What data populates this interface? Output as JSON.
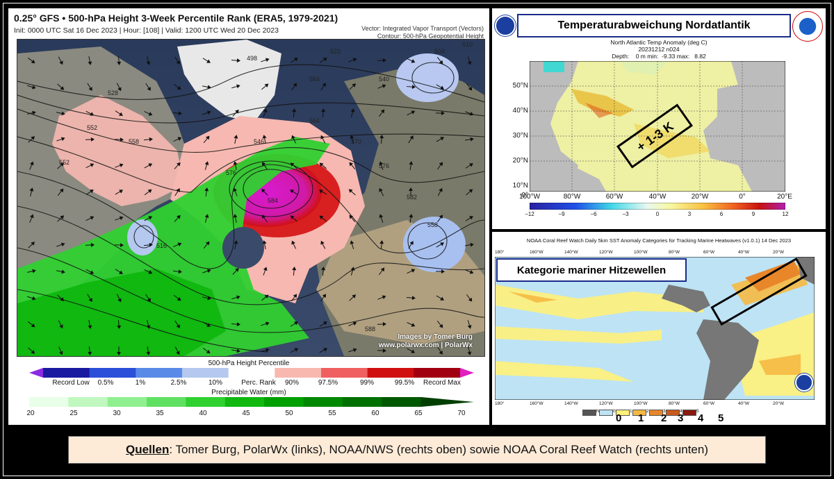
{
  "left_panel": {
    "title": "0.25° GFS • 500-hPa Height 3-Week Percentile Rank (ERA5, 1979-2021)",
    "subtitle": "Init: 0000 UTC Sat 16 Dec 2023 | Hour: [108] | Valid: 1200 UTC Wed 20 Dec 2023",
    "vector_note": "Vector: Integrated Vapor Transport (Vectors)",
    "contour_note": "Contour: 500-hPa Geopotential Height",
    "credit_line1": "Images by Tomer Burg",
    "credit_line2": "www.polarwx.com | PolarWx",
    "contour_labels": [
      "498",
      "504",
      "552",
      "558",
      "546",
      "564",
      "570",
      "576",
      "582",
      "588",
      "552",
      "564",
      "576",
      "584",
      "510",
      "540",
      "528",
      "522",
      "558",
      "516"
    ],
    "height_colorbar": {
      "title": "500-hPa Height Percentile",
      "labels": [
        "Record Low",
        "0.5%",
        "1%",
        "2.5%",
        "10%",
        "Perc. Rank",
        "90%",
        "97.5%",
        "99%",
        "99.5%",
        "Record Max"
      ],
      "colors": [
        "#8a2be2",
        "#1a1aa0",
        "#2b4fd8",
        "#5a8ae8",
        "#b4c8f0",
        "#ffffff",
        "#f8b8b0",
        "#f06060",
        "#d01010",
        "#a00010",
        "#e020c0"
      ]
    },
    "pw_colorbar": {
      "title": "Precipitable Water (mm)",
      "ticks": [
        "20",
        "25",
        "30",
        "35",
        "40",
        "45",
        "50",
        "55",
        "60",
        "65",
        "70"
      ],
      "colors": [
        "#e8ffe8",
        "#c0f8c0",
        "#90f090",
        "#60e060",
        "#30d030",
        "#10b810",
        "#00a000",
        "#008800",
        "#007000",
        "#005800",
        "#003e00"
      ]
    }
  },
  "right_top": {
    "header": "Temperaturabweichung Nordatlantik",
    "plot_title": "North Atlantic Temp Anomaly (deg C)",
    "plot_date": "20231212 n024",
    "plot_depth": "Depth:    0 m min:  -9.33 max:   8.82",
    "y_ticks": [
      "50°N",
      "40°N",
      "30°N",
      "20°N",
      "10°N",
      "0°"
    ],
    "x_ticks": [
      "100°W",
      "80°W",
      "60°W",
      "40°W",
      "20°W",
      "0°",
      "20°E"
    ],
    "colorbar_ticks": [
      "−12",
      "−9",
      "−6",
      "−3",
      "0",
      "3",
      "6",
      "9",
      "12"
    ],
    "annotation": "+ 1-3 K"
  },
  "right_bottom": {
    "plot_title": "NOAA Coral Reef Watch Daily 5km SST Anomaly Categories for Tracking Marine Heatwaves  (v1.0.1)  14 Dec 2023",
    "header": "Kategorie mariner Hitzewellen",
    "top_lon_ticks": [
      "180°",
      "160°W",
      "140°W",
      "120°W",
      "100°W",
      "80°W",
      "60°W",
      "40°W",
      "20°W"
    ],
    "bottom_lon_ticks": [
      "180°",
      "160°W",
      "140°W",
      "120°W",
      "100°W",
      "80°W",
      "60°W",
      "40°W",
      "20°W"
    ],
    "legend_labels": [
      "No data",
      "0",
      "1",
      "2",
      "3",
      "4",
      "5"
    ],
    "legend_colors": [
      "#555555",
      "#bde3f5",
      "#fff17a",
      "#f5b942",
      "#e8862a",
      "#c85a1a",
      "#8a1a0e"
    ],
    "big_numbers": [
      "0",
      "1",
      "2",
      "3",
      "4",
      "5"
    ]
  },
  "footer": {
    "label": "Quellen",
    "text": ": Tomer Burg, PolarWx (links), NOAA/NWS (rechts oben) sowie NOAA Coral Reef Watch (rechts unten)"
  }
}
